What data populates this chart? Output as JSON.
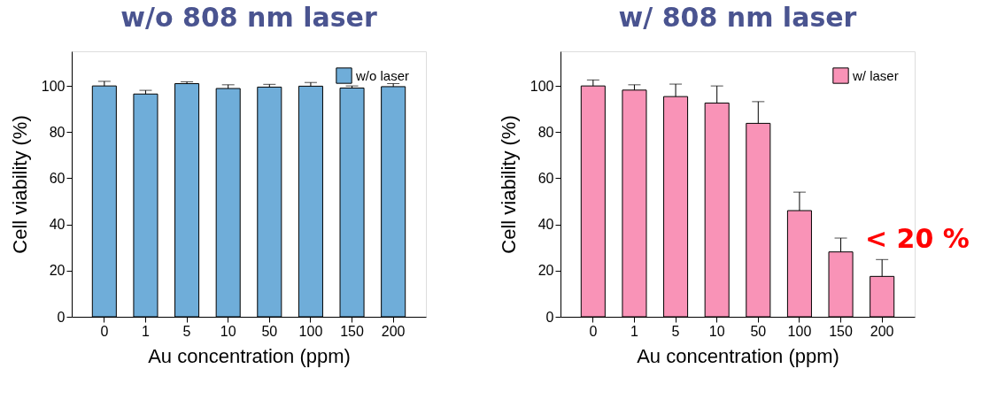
{
  "chart_data": [
    {
      "type": "bar",
      "title": "w/o 808 nm laser",
      "xlabel": "Au concentration (ppm)",
      "ylabel": "Cell viability (%)",
      "categories": [
        "0",
        "1",
        "5",
        "10",
        "50",
        "100",
        "150",
        "200"
      ],
      "series": [
        {
          "name": "w/o laser",
          "color": "#6fadd9",
          "values": [
            100,
            96.5,
            101,
            98.9,
            99.5,
            99.9,
            99.1,
            99.7
          ],
          "errors": [
            2.0,
            1.6,
            0.8,
            1.6,
            1.2,
            1.6,
            0.9,
            1.3
          ]
        }
      ],
      "ylim": [
        0,
        115
      ],
      "yticks": [
        0,
        20,
        40,
        60,
        80,
        100
      ],
      "grid": false,
      "legend": "top right"
    },
    {
      "type": "bar",
      "title": "w/ 808 nm laser",
      "xlabel": "Au concentration (ppm)",
      "ylabel": "Cell viability (%)",
      "categories": [
        "0",
        "1",
        "5",
        "10",
        "50",
        "100",
        "150",
        "200"
      ],
      "series": [
        {
          "name": "w/ laser",
          "color": "#f993b7",
          "values": [
            100,
            98.2,
            95.4,
            92.6,
            83.8,
            46,
            28.1,
            17.5
          ],
          "errors": [
            2.6,
            2.3,
            5.4,
            7.4,
            9.4,
            8,
            6,
            7.3
          ]
        }
      ],
      "ylim": [
        0,
        115
      ],
      "yticks": [
        0,
        20,
        40,
        60,
        80,
        100
      ],
      "grid": false,
      "legend": "top right",
      "annotations": [
        "< 20 %"
      ]
    }
  ]
}
